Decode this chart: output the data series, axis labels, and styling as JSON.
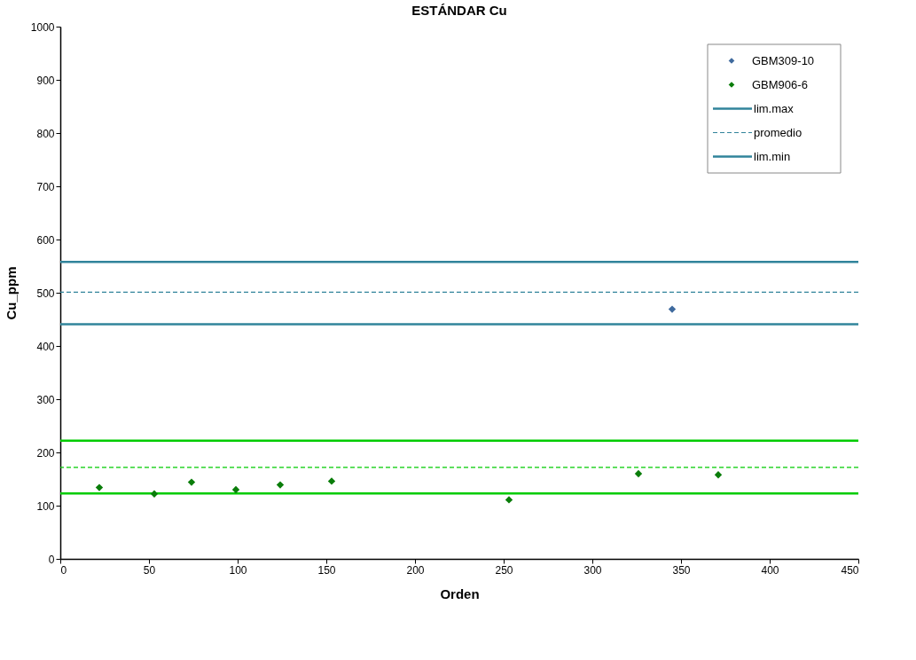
{
  "chart_data": {
    "type": "scatter",
    "title": "ESTÁNDAR Cu",
    "xlabel": "Orden",
    "ylabel": "Cu_ppm",
    "xlim": [
      0,
      450
    ],
    "xticks": [
      0,
      50,
      100,
      150,
      200,
      250,
      300,
      350,
      400,
      450
    ],
    "ylim": [
      0,
      1000
    ],
    "yticks": [
      0,
      100,
      200,
      300,
      400,
      500,
      600,
      700,
      800,
      900,
      1000
    ],
    "grid": false,
    "legend": "top right",
    "marker": "diamond",
    "series": [
      {
        "name": "GBM309-10",
        "color": "#3f6a9e",
        "x": [
          345
        ],
        "values": [
          469
        ]
      },
      {
        "name": "GBM906-6",
        "color": "#0a7d0a",
        "x": [
          22,
          53,
          74,
          99,
          124,
          153,
          253,
          326,
          371
        ],
        "values": [
          134,
          122,
          144,
          130,
          139,
          146,
          111,
          160,
          158
        ]
      }
    ],
    "ref_lines": [
      {
        "axis": "y",
        "value": 558,
        "label": "lim.max",
        "color": "#31849b",
        "line_style": "solid"
      },
      {
        "axis": "y",
        "value": 501,
        "label": "promedio",
        "color": "#31849b",
        "line_style": "dashed"
      },
      {
        "axis": "y",
        "value": 441,
        "label": "lim.min",
        "color": "#31849b",
        "line_style": "solid"
      },
      {
        "axis": "y",
        "value": 222,
        "label": null,
        "color": "#00cc00",
        "line_style": "solid"
      },
      {
        "axis": "y",
        "value": 172,
        "label": null,
        "color": "#00cc00",
        "line_style": "dashed"
      },
      {
        "axis": "y",
        "value": 123,
        "label": null,
        "color": "#00cc00",
        "line_style": "solid"
      }
    ]
  }
}
